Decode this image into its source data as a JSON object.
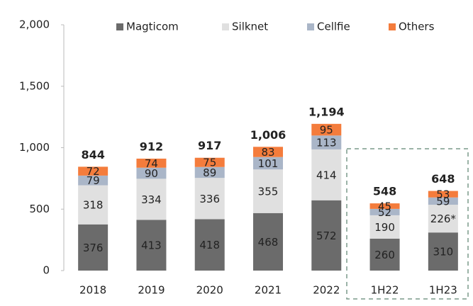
{
  "chart_data": {
    "type": "stacked_bar",
    "categories": [
      "2018",
      "2019",
      "2020",
      "2021",
      "2022",
      "1H22",
      "1H23"
    ],
    "series": [
      {
        "name": "Magticom",
        "color": "#6b6b6b",
        "values": [
          376,
          413,
          418,
          468,
          572,
          260,
          310
        ]
      },
      {
        "name": "Silknet",
        "color": "#e0e0e0",
        "values": [
          318,
          334,
          336,
          355,
          414,
          190,
          226
        ],
        "value_labels": [
          "318",
          "334",
          "336",
          "355",
          "414",
          "190",
          "226*"
        ]
      },
      {
        "name": "Cellfie",
        "color": "#aab6c8",
        "values": [
          79,
          90,
          89,
          101,
          113,
          52,
          59
        ]
      },
      {
        "name": "Others",
        "color": "#f47c3c",
        "values": [
          72,
          74,
          75,
          83,
          95,
          45,
          53
        ]
      }
    ],
    "totals": {
      "values": [
        844,
        912,
        917,
        1006,
        1194,
        548,
        648
      ],
      "value_labels": [
        "844",
        "912",
        "917",
        "1,006",
        "1,194",
        "548",
        "648"
      ]
    },
    "ylim": [
      0,
      2000
    ],
    "yticks": [
      0,
      500,
      {
        "value": 1000,
        "label": "1,000"
      },
      {
        "value": 1500,
        "label": "1,500"
      },
      {
        "value": 2000,
        "label": "2,000"
      }
    ],
    "grid": false,
    "legend": "top"
  }
}
